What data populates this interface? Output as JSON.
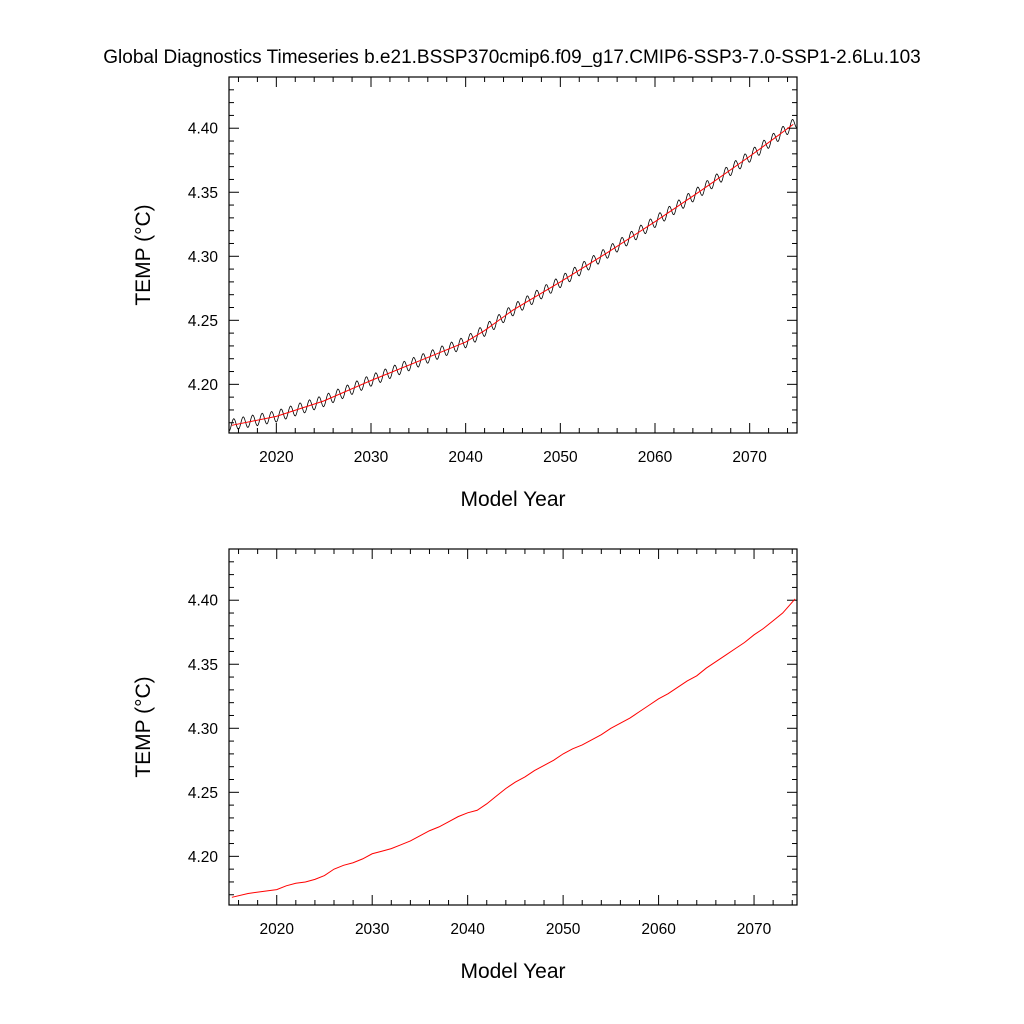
{
  "title": "Global Diagnostics Timeseries b.e21.BSSP370cmip6.f09_g17.CMIP6-SSP3-7.0-SSP1-2.6Lu.103",
  "chart_data": [
    {
      "type": "line",
      "xlabel": "Model Year",
      "ylabel": "TEMP (°C)",
      "xlim": [
        2015.0,
        2075.0
      ],
      "ylim": [
        4.162,
        4.44
      ],
      "xticks": [
        2020,
        2030,
        2040,
        2050,
        2060,
        2070
      ],
      "xtick_labels": [
        "2020",
        "2030",
        "2040",
        "2050",
        "2060",
        "2070"
      ],
      "yticks": [
        4.2,
        4.25,
        4.3,
        4.35,
        4.4
      ],
      "ytick_labels": [
        "4.20",
        "4.25",
        "4.30",
        "4.35",
        "4.40"
      ],
      "grid": false,
      "series": [
        {
          "style": "monthly",
          "color": "#000000",
          "seasonal_amplitude": 0.0045,
          "x": [
            2015.0,
            2020,
            2025,
            2030,
            2035,
            2040,
            2042,
            2045,
            2050,
            2055,
            2060,
            2065,
            2070,
            2075.0
          ],
          "y": [
            4.168,
            4.175,
            4.187,
            4.203,
            4.218,
            4.233,
            4.242,
            4.258,
            4.28,
            4.303,
            4.327,
            4.352,
            4.378,
            4.405
          ]
        },
        {
          "style": "annual",
          "color": "#ff0000",
          "x": [
            2015.3,
            2020,
            2025,
            2030,
            2035,
            2040,
            2042,
            2045,
            2050,
            2055,
            2060,
            2065,
            2070,
            2074.6
          ],
          "y": [
            4.168,
            4.175,
            4.187,
            4.203,
            4.218,
            4.233,
            4.242,
            4.258,
            4.28,
            4.303,
            4.327,
            4.352,
            4.378,
            4.403
          ]
        }
      ]
    },
    {
      "type": "line",
      "xlabel": "Model Year",
      "ylabel": "TEMP (°C)",
      "xlim": [
        2015.0,
        2074.5
      ],
      "ylim": [
        4.162,
        4.44
      ],
      "xticks": [
        2020,
        2030,
        2040,
        2050,
        2060,
        2070
      ],
      "xtick_labels": [
        "2020",
        "2030",
        "2040",
        "2050",
        "2060",
        "2070"
      ],
      "yticks": [
        4.2,
        4.25,
        4.3,
        4.35,
        4.4
      ],
      "ytick_labels": [
        "4.20",
        "4.25",
        "4.30",
        "4.35",
        "4.40"
      ],
      "grid": false,
      "series": [
        {
          "style": "annual",
          "color": "#ff0000",
          "x": [
            2015.3,
            2017,
            2019,
            2020,
            2021,
            2022,
            2023,
            2024,
            2025,
            2026,
            2027,
            2028,
            2029,
            2030,
            2031,
            2032,
            2033,
            2034,
            2035,
            2036,
            2037,
            2038,
            2039,
            2040,
            2041,
            2042,
            2043,
            2044,
            2045,
            2046,
            2047,
            2048,
            2049,
            2050,
            2051,
            2052,
            2053,
            2054,
            2055,
            2056,
            2057,
            2058,
            2059,
            2060,
            2061,
            2062,
            2063,
            2064,
            2065,
            2066,
            2067,
            2068,
            2069,
            2070,
            2071,
            2072,
            2073,
            2074.3
          ],
          "y": [
            4.168,
            4.171,
            4.173,
            4.174,
            4.177,
            4.179,
            4.18,
            4.182,
            4.185,
            4.19,
            4.193,
            4.195,
            4.198,
            4.202,
            4.204,
            4.206,
            4.209,
            4.212,
            4.216,
            4.22,
            4.223,
            4.227,
            4.231,
            4.234,
            4.236,
            4.241,
            4.247,
            4.253,
            4.258,
            4.262,
            4.267,
            4.271,
            4.275,
            4.28,
            4.284,
            4.287,
            4.291,
            4.295,
            4.3,
            4.304,
            4.308,
            4.313,
            4.318,
            4.323,
            4.327,
            4.332,
            4.337,
            4.341,
            4.347,
            4.352,
            4.357,
            4.362,
            4.367,
            4.373,
            4.378,
            4.384,
            4.39,
            4.401
          ]
        }
      ]
    }
  ]
}
